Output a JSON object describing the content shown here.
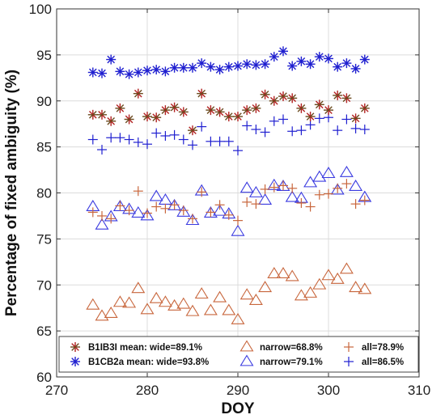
{
  "chart_data": {
    "type": "scatter",
    "title": "",
    "xlabel": "DOY",
    "ylabel": "Percentage of fixed ambiguity (%)",
    "xlim": [
      270,
      310
    ],
    "ylim": [
      60,
      100
    ],
    "xticks": [
      "270",
      "280",
      "290",
      "300",
      "310"
    ],
    "yticks": [
      "60",
      "65",
      "70",
      "75",
      "80",
      "85",
      "90",
      "95",
      "100"
    ],
    "grid": true,
    "legend_location": "bottom",
    "series": [
      {
        "name": "B1IB3I mean: wide=89.1%",
        "marker": "asterisk",
        "color": "#b22222",
        "color2": "#6b4a1e",
        "x": [
          274,
          275,
          276,
          277,
          278,
          279,
          280,
          281,
          282,
          283,
          284,
          285,
          286,
          287,
          288,
          289,
          290,
          291,
          292,
          293,
          294,
          295,
          296,
          297,
          298,
          299,
          300,
          301,
          302,
          303,
          304
        ],
        "y": [
          88.5,
          88.5,
          87.8,
          89.2,
          88.0,
          90.8,
          88.3,
          88.2,
          89.0,
          89.3,
          88.8,
          86.8,
          90.8,
          89.0,
          88.8,
          88.3,
          88.3,
          89.0,
          89.2,
          90.7,
          90.0,
          90.5,
          90.3,
          89.2,
          88.3,
          89.6,
          89.0,
          90.6,
          90.3,
          88.1,
          89.2
        ]
      },
      {
        "name": "narrow=68.8%",
        "marker": "triangle",
        "color": "#c8663c",
        "x": [
          274,
          275,
          276,
          277,
          278,
          279,
          280,
          281,
          282,
          283,
          284,
          285,
          286,
          287,
          288,
          289,
          290,
          291,
          292,
          293,
          294,
          295,
          296,
          297,
          298,
          299,
          300,
          301,
          302,
          303,
          304
        ],
        "y": [
          67.8,
          66.6,
          66.9,
          68.1,
          68.0,
          69.6,
          67.3,
          68.5,
          68.1,
          67.7,
          67.9,
          67.1,
          69.0,
          67.2,
          68.6,
          67.2,
          66.2,
          68.9,
          68.3,
          69.7,
          71.2,
          71.2,
          70.9,
          68.8,
          69.1,
          70.0,
          71.0,
          70.6,
          71.7,
          69.7,
          69.5
        ]
      },
      {
        "name": "all=78.9%",
        "marker": "plus",
        "color": "#c8663c",
        "x": [
          274,
          275,
          276,
          277,
          278,
          279,
          280,
          281,
          282,
          283,
          284,
          285,
          286,
          287,
          288,
          289,
          290,
          291,
          292,
          293,
          294,
          295,
          296,
          297,
          298,
          299,
          300,
          301,
          302,
          303,
          304
        ],
        "y": [
          77.9,
          77.5,
          77.2,
          78.6,
          78.1,
          80.2,
          77.8,
          78.5,
          78.3,
          78.7,
          78.1,
          77.2,
          80.1,
          77.9,
          78.7,
          77.6,
          77.0,
          79.0,
          78.8,
          80.4,
          80.6,
          80.8,
          80.5,
          78.9,
          78.5,
          79.8,
          79.9,
          80.5,
          81.0,
          78.8,
          79.2
        ]
      },
      {
        "name": "B1CB2a mean: wide=93.8%",
        "marker": "asterisk",
        "color": "#1f1fd0",
        "x": [
          274,
          275,
          276,
          277,
          278,
          279,
          280,
          281,
          282,
          283,
          284,
          285,
          286,
          287,
          288,
          289,
          290,
          291,
          292,
          293,
          294,
          295,
          296,
          297,
          298,
          299,
          300,
          301,
          302,
          303,
          304
        ],
        "y": [
          93.1,
          93.0,
          94.5,
          93.2,
          92.9,
          93.1,
          93.3,
          93.4,
          93.2,
          93.6,
          93.6,
          93.6,
          94.1,
          93.7,
          93.4,
          93.7,
          93.8,
          94.0,
          93.9,
          94.0,
          94.8,
          95.4,
          93.8,
          94.3,
          94.0,
          94.8,
          94.6,
          93.7,
          94.1,
          93.5,
          94.5
        ]
      },
      {
        "name": "narrow=79.1%",
        "marker": "triangle",
        "color": "#3a3ae0",
        "x": [
          274,
          275,
          276,
          277,
          278,
          279,
          280,
          281,
          282,
          283,
          284,
          285,
          286,
          287,
          288,
          289,
          290,
          291,
          292,
          293,
          294,
          295,
          296,
          297,
          298,
          299,
          300,
          301,
          302,
          303,
          304
        ],
        "y": [
          78.5,
          76.5,
          77.4,
          78.5,
          78.2,
          77.8,
          77.5,
          79.6,
          79.2,
          78.6,
          77.9,
          77.0,
          80.2,
          77.8,
          78.0,
          77.7,
          75.8,
          80.5,
          80.0,
          79.2,
          80.8,
          80.7,
          79.5,
          79.4,
          81.1,
          81.7,
          82.1,
          80.3,
          82.2,
          80.7,
          79.5
        ]
      },
      {
        "name": "all=86.5%",
        "marker": "plus",
        "color": "#1f1fd0",
        "x": [
          274,
          275,
          276,
          277,
          278,
          279,
          280,
          281,
          282,
          283,
          284,
          285,
          286,
          287,
          288,
          289,
          290,
          291,
          292,
          293,
          294,
          295,
          296,
          297,
          298,
          299,
          300,
          301,
          302,
          303,
          304
        ],
        "y": [
          85.8,
          84.7,
          86.0,
          86.0,
          85.8,
          85.5,
          85.3,
          86.5,
          86.2,
          86.3,
          85.8,
          85.2,
          87.2,
          85.6,
          85.6,
          85.6,
          84.6,
          87.3,
          86.9,
          86.6,
          87.8,
          88.0,
          86.7,
          86.8,
          87.4,
          88.1,
          88.2,
          86.8,
          88.0,
          87.0,
          86.9
        ]
      }
    ],
    "legend": {
      "rows": [
        [
          {
            "series": 0,
            "label": "B1IB3I mean: wide=89.1%"
          },
          {
            "series": 1,
            "label": "narrow=68.8%"
          },
          {
            "series": 2,
            "label": "all=78.9%"
          }
        ],
        [
          {
            "series": 3,
            "label": "B1CB2a mean: wide=93.8%"
          },
          {
            "series": 4,
            "label": "narrow=79.1%"
          },
          {
            "series": 5,
            "label": "all=86.5%"
          }
        ]
      ]
    }
  }
}
